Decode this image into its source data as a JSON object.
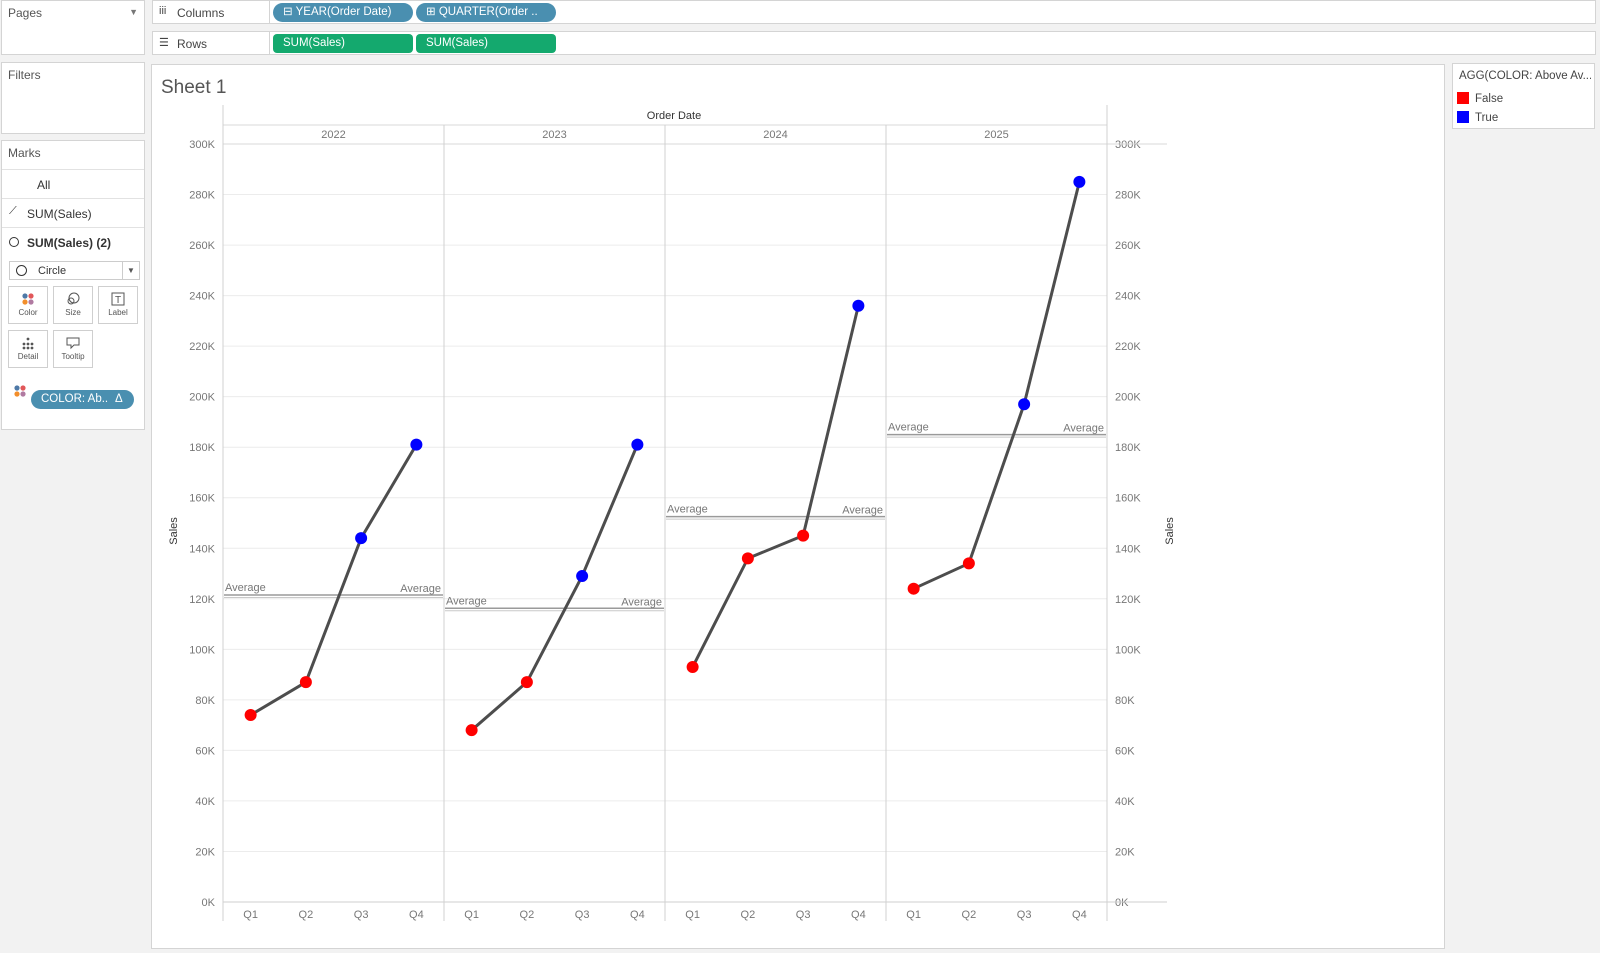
{
  "pages": {
    "title": "Pages"
  },
  "filters": {
    "title": "Filters"
  },
  "marks": {
    "title": "Marks",
    "all": "All",
    "rows": [
      "SUM(Sales)",
      "SUM(Sales) (2)"
    ],
    "mark_type": "Circle",
    "buttons": [
      "Color",
      "Size",
      "Label",
      "Detail",
      "Tooltip"
    ],
    "color_pill": "COLOR: Ab..",
    "color_pill_delta": "Δ"
  },
  "shelves": {
    "columns_label": "Columns",
    "rows_label": "Rows",
    "columns_pills": [
      "YEAR(Order Date)",
      "QUARTER(Order .."
    ],
    "rows_pills": [
      "SUM(Sales)",
      "SUM(Sales)"
    ],
    "expand_glyph": "⊟",
    "add_glyph": "⊞"
  },
  "sheet": {
    "title": "Sheet 1"
  },
  "legend": {
    "title": "AGG(COLOR: Above Av...",
    "items": [
      {
        "label": "False",
        "color": "#ff0000"
      },
      {
        "label": "True",
        "color": "#0000ff"
      }
    ]
  },
  "chart_data": {
    "type": "line",
    "header": "Order Date",
    "ylabel": "Sales",
    "ylabel_right": "Sales",
    "ylim": [
      0,
      300000
    ],
    "y_ticks": [
      "0K",
      "20K",
      "40K",
      "60K",
      "80K",
      "100K",
      "120K",
      "140K",
      "160K",
      "180K",
      "200K",
      "220K",
      "240K",
      "260K",
      "280K",
      "300K"
    ],
    "years": [
      "2022",
      "2023",
      "2024",
      "2025"
    ],
    "categories": [
      "Q1",
      "Q2",
      "Q3",
      "Q4"
    ],
    "reference_line_label": "Average",
    "line_color": "#4d4d4d",
    "series": [
      {
        "year": "2022",
        "values": [
          74000,
          87000,
          144000,
          181000
        ],
        "average": 121500,
        "above_average": [
          false,
          false,
          true,
          true
        ]
      },
      {
        "year": "2023",
        "values": [
          68000,
          87000,
          129000,
          181000
        ],
        "average": 116250,
        "above_average": [
          false,
          false,
          true,
          true
        ]
      },
      {
        "year": "2024",
        "values": [
          93000,
          136000,
          145000,
          236000
        ],
        "average": 152500,
        "above_average": [
          false,
          false,
          false,
          true
        ]
      },
      {
        "year": "2025",
        "values": [
          124000,
          134000,
          197000,
          285000
        ],
        "average": 185000,
        "above_average": [
          false,
          false,
          true,
          true
        ]
      }
    ]
  }
}
